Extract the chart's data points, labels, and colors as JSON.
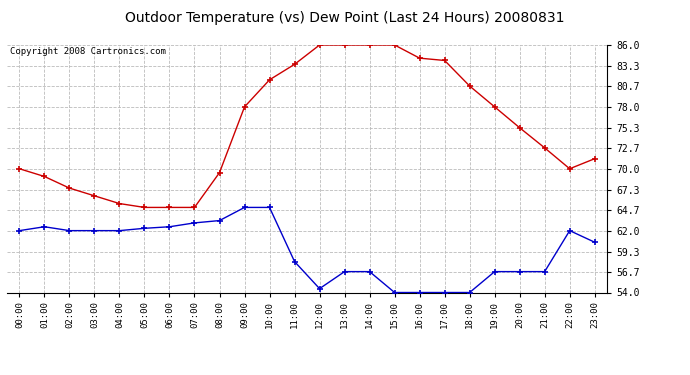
{
  "title": "Outdoor Temperature (vs) Dew Point (Last 24 Hours) 20080831",
  "copyright": "Copyright 2008 Cartronics.com",
  "hours": [
    "00:00",
    "01:00",
    "02:00",
    "03:00",
    "04:00",
    "05:00",
    "06:00",
    "07:00",
    "08:00",
    "09:00",
    "10:00",
    "11:00",
    "12:00",
    "13:00",
    "14:00",
    "15:00",
    "16:00",
    "17:00",
    "18:00",
    "19:00",
    "20:00",
    "21:00",
    "22:00",
    "23:00"
  ],
  "temp": [
    70.0,
    69.0,
    67.5,
    66.5,
    65.5,
    65.0,
    65.0,
    65.0,
    69.5,
    78.0,
    81.5,
    83.5,
    86.0,
    86.0,
    86.0,
    86.0,
    84.3,
    84.0,
    80.7,
    78.0,
    75.3,
    72.7,
    70.0,
    71.3
  ],
  "dew": [
    62.0,
    62.5,
    62.0,
    62.0,
    62.0,
    62.3,
    62.5,
    63.0,
    63.3,
    65.0,
    65.0,
    58.0,
    54.5,
    56.7,
    56.7,
    54.0,
    54.0,
    54.0,
    54.0,
    56.7,
    56.7,
    56.7,
    62.0,
    60.5
  ],
  "yticks": [
    54.0,
    56.7,
    59.3,
    62.0,
    64.7,
    67.3,
    70.0,
    72.7,
    75.3,
    78.0,
    80.7,
    83.3,
    86.0
  ],
  "ymin": 54.0,
  "ymax": 86.0,
  "temp_color": "#cc0000",
  "dew_color": "#0000cc",
  "grid_color": "#bbbbbb",
  "bg_color": "#ffffff",
  "title_fontsize": 10,
  "copyright_fontsize": 6.5
}
